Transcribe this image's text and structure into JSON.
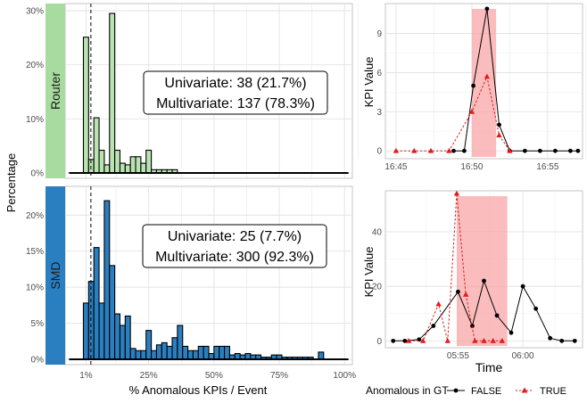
{
  "chart_data": [
    {
      "type": "bar",
      "panel": "Router",
      "strip_label": "Router",
      "strip_color": "#a8dba0",
      "bar_color": "#b9e3b0",
      "xlim": [
        -7,
        103
      ],
      "ylim": [
        0,
        30
      ],
      "y_ticks": [
        {
          "v": 0,
          "label": "0%"
        },
        {
          "v": 10,
          "label": "10%"
        },
        {
          "v": 20,
          "label": "20%"
        },
        {
          "v": 30,
          "label": "30%"
        }
      ],
      "bin_width": 2,
      "bin_starts": [
        0,
        2,
        4,
        6,
        8,
        10,
        12,
        14,
        16,
        18,
        20,
        22,
        24,
        26,
        28,
        30,
        32,
        34
      ],
      "values": [
        25.1,
        2.5,
        10.2,
        4.2,
        1.5,
        29.5,
        4.2,
        1.8,
        1.5,
        3.0,
        3.0,
        1.8,
        4.2,
        0.6,
        0.6,
        0.6,
        0.6,
        0.6
      ],
      "vline_x": 1,
      "annotation": [
        "Univariate: 38 (21.7%)",
        "Multivariate: 137 (78.3%)"
      ]
    },
    {
      "type": "bar",
      "panel": "SMD",
      "strip_label": "SMD",
      "strip_color": "#2a7fc0",
      "bar_color": "#2a7fc0",
      "xlim": [
        -7,
        103
      ],
      "ylim": [
        0,
        23
      ],
      "y_ticks": [
        {
          "v": 0,
          "label": "0%"
        },
        {
          "v": 5,
          "label": "5%"
        },
        {
          "v": 10,
          "label": "10%"
        },
        {
          "v": 15,
          "label": "15%"
        },
        {
          "v": 20,
          "label": "20%"
        }
      ],
      "x_ticks": [
        {
          "v": 1,
          "label": "1%"
        },
        {
          "v": 25,
          "label": "25%"
        },
        {
          "v": 50,
          "label": "50%"
        },
        {
          "v": 75,
          "label": "75%"
        },
        {
          "v": 100,
          "label": "100%"
        }
      ],
      "bin_width": 2,
      "bin_starts": [
        0,
        2,
        4,
        6,
        8,
        10,
        12,
        14,
        16,
        18,
        20,
        22,
        24,
        26,
        28,
        30,
        32,
        34,
        36,
        38,
        40,
        42,
        44,
        46,
        48,
        50,
        52,
        54,
        56,
        58,
        60,
        62,
        64,
        66,
        68,
        70,
        72,
        74,
        76,
        78,
        80,
        82,
        84,
        86,
        88,
        90
      ],
      "values": [
        7.8,
        10.8,
        15.5,
        7.8,
        22.0,
        13.0,
        6.3,
        4.7,
        6.0,
        1.5,
        1.2,
        1.2,
        4.0,
        1.2,
        2.0,
        2.3,
        1.8,
        3.0,
        4.7,
        1.8,
        1.2,
        1.2,
        1.8,
        1.8,
        0.8,
        1.8,
        1.8,
        1.8,
        0.6,
        0.8,
        0.6,
        0.8,
        0.6,
        0.6,
        0.3,
        0.3,
        0.6,
        0.6,
        0.3,
        0.3,
        0.3,
        0.3,
        0.3,
        0.3,
        0.0,
        1.0
      ],
      "vline_x": 1,
      "annotation": [
        "Univariate: 25 (7.7%)",
        "Multivariate: 300 (92.3%)"
      ]
    },
    {
      "type": "line",
      "panel": "top-right",
      "ylim": [
        -0.6,
        11.3
      ],
      "y_ticks": [
        0,
        3,
        6,
        9
      ],
      "x_ticks": [
        {
          "v": 0,
          "label": "16:45"
        },
        {
          "v": 5,
          "label": "16:50"
        },
        {
          "v": 10,
          "label": "16:55"
        }
      ],
      "xlim": [
        -0.7,
        12.3
      ],
      "highlight": [
        5.0,
        6.6
      ],
      "series": [
        {
          "name": "FALSE",
          "color": "#000000",
          "style": "solid",
          "marker": "circle",
          "x": [
            3.8,
            4.5,
            5.1,
            6.0,
            6.8,
            7.5,
            8.5,
            9.5,
            10.5,
            11.5,
            12.0
          ],
          "y": [
            0,
            0,
            5.0,
            10.9,
            2.0,
            0,
            0,
            0,
            0,
            0,
            0
          ]
        },
        {
          "name": "TRUE",
          "color": "#e41a1c",
          "style": "dashed",
          "marker": "triangle",
          "x": [
            0,
            1.2,
            2.3,
            3.5,
            5.0,
            6.0,
            6.8,
            7.5
          ],
          "y": [
            0,
            0,
            0,
            0,
            3.0,
            5.7,
            1.2,
            0
          ]
        }
      ],
      "ylabel": "KPI Value"
    },
    {
      "type": "line",
      "panel": "bottom-right",
      "ylim": [
        -2.5,
        55
      ],
      "y_ticks": [
        0,
        20,
        40
      ],
      "x_ticks": [
        {
          "v": 5,
          "label": "05:55"
        },
        {
          "v": 10,
          "label": "06:00"
        }
      ],
      "xlim": [
        -0.6,
        14.6
      ],
      "highlight": [
        4.9,
        8.8
      ],
      "series": [
        {
          "name": "FALSE",
          "color": "#000000",
          "style": "solid",
          "marker": "circle",
          "x": [
            0,
            0.9,
            2.0,
            3.1,
            5.0,
            6.1,
            7.0,
            8.0,
            9.1,
            10.0,
            11.0,
            12.1,
            13.0,
            14.0
          ],
          "y": [
            0,
            0,
            0.5,
            5.5,
            18.0,
            5.5,
            22.0,
            9.3,
            3.0,
            20.0,
            11.8,
            1.0,
            0,
            0
          ]
        },
        {
          "name": "TRUE",
          "color": "#e41a1c",
          "style": "dashed",
          "marker": "triangle",
          "x": [
            1.2,
            2.3,
            3.5,
            4.2,
            4.9,
            5.6,
            6.3,
            7.0,
            7.7,
            8.4
          ],
          "y": [
            0,
            0,
            13.5,
            0,
            54.0,
            17.0,
            0,
            0,
            0,
            0
          ]
        }
      ],
      "ylabel": "KPI Value",
      "xlabel": "Time"
    }
  ],
  "shared": {
    "hist_xlabel": "% Anomalous KPIs / Event",
    "hist_ylabel": "Percentage",
    "legend_title": "Anomalous in GT",
    "legend_false": "FALSE",
    "legend_true": "TRUE"
  }
}
